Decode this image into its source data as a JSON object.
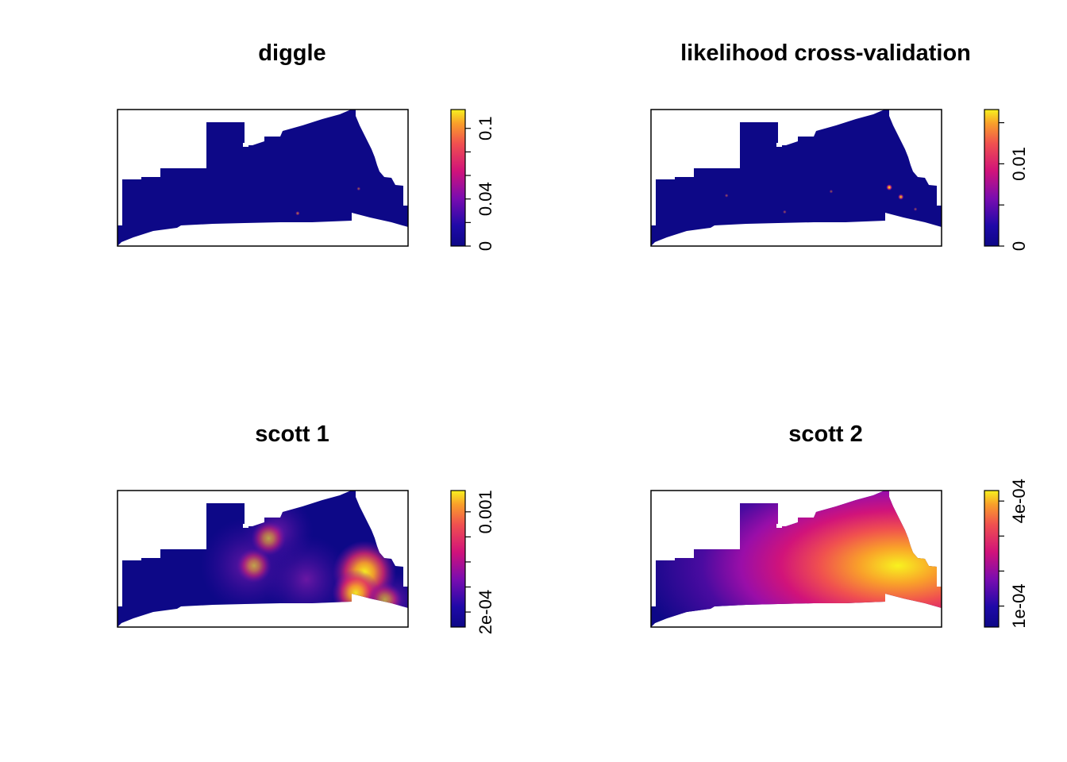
{
  "chart_data": [
    {
      "type": "heatmap",
      "title": "diggle",
      "xlabel": "",
      "ylabel": "",
      "colorbar": {
        "range": [
          0,
          0.116
        ],
        "ticks": [
          0,
          0.02,
          0.04,
          0.06,
          0.08,
          0.1
        ],
        "tick_labels": [
          "0",
          "",
          "0.04",
          "",
          "",
          "0.1"
        ]
      },
      "hotspots": [
        {
          "x": 0.62,
          "y": 0.24,
          "intensity": 0.25
        },
        {
          "x": 0.83,
          "y": 0.42,
          "intensity": 0.15
        }
      ]
    },
    {
      "type": "heatmap",
      "title": "likelihood cross-validation",
      "xlabel": "",
      "ylabel": "",
      "colorbar": {
        "range": [
          0,
          0.0166
        ],
        "ticks": [
          0,
          0.005,
          0.01,
          0.015
        ],
        "tick_labels": [
          "0",
          "",
          "0.01",
          ""
        ]
      },
      "hotspots": [
        {
          "x": 0.82,
          "y": 0.43,
          "intensity": 0.65
        },
        {
          "x": 0.86,
          "y": 0.36,
          "intensity": 0.55
        },
        {
          "x": 0.26,
          "y": 0.37,
          "intensity": 0.12
        },
        {
          "x": 0.46,
          "y": 0.25,
          "intensity": 0.12
        },
        {
          "x": 0.62,
          "y": 0.4,
          "intensity": 0.12
        },
        {
          "x": 0.91,
          "y": 0.27,
          "intensity": 0.12
        }
      ]
    },
    {
      "type": "heatmap",
      "title": "scott 1",
      "xlabel": "",
      "ylabel": "",
      "colorbar": {
        "range": [
          8e-05,
          0.00117
        ],
        "ticks": [
          0.0002,
          0.0004,
          0.0006,
          0.0008,
          0.001
        ],
        "tick_labels": [
          "2e-04",
          "",
          "",
          "",
          "0.001"
        ]
      },
      "hotspots": [
        {
          "x": 0.85,
          "y": 0.4,
          "intensity": 1.0
        },
        {
          "x": 0.82,
          "y": 0.25,
          "intensity": 0.6
        },
        {
          "x": 0.47,
          "y": 0.45,
          "intensity": 0.3
        },
        {
          "x": 0.52,
          "y": 0.65,
          "intensity": 0.3
        },
        {
          "x": 0.92,
          "y": 0.2,
          "intensity": 0.3
        }
      ]
    },
    {
      "type": "heatmap",
      "title": "scott 2",
      "xlabel": "",
      "ylabel": "",
      "colorbar": {
        "range": [
          4e-05,
          0.00043
        ],
        "ticks": [
          0.0001,
          0.0002,
          0.0003,
          0.0004
        ],
        "tick_labels": [
          "1e-04",
          "",
          "",
          "4e-04"
        ]
      },
      "hotspots": [
        {
          "x": 0.88,
          "y": 0.3,
          "intensity": 1.0
        }
      ]
    }
  ]
}
